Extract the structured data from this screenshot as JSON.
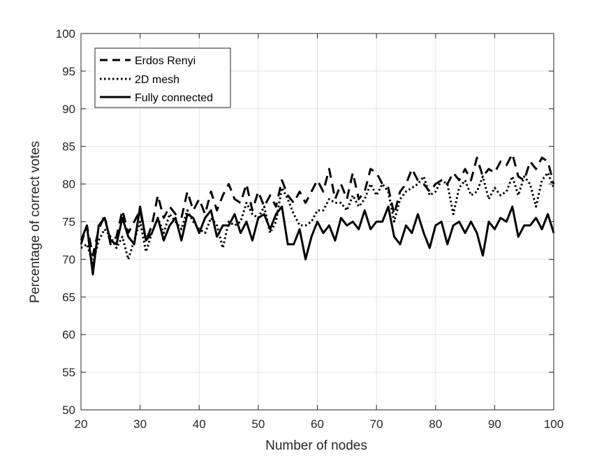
{
  "chart_data": {
    "type": "line",
    "title": "",
    "xlabel": "Number of nodes",
    "ylabel": "Percentage of correct votes",
    "xlim": [
      20,
      100
    ],
    "ylim": [
      50,
      100
    ],
    "xticks": [
      20,
      30,
      40,
      50,
      60,
      70,
      80,
      90,
      100
    ],
    "yticks": [
      50,
      55,
      60,
      65,
      70,
      75,
      80,
      85,
      90,
      95,
      100
    ],
    "grid": true,
    "legend_position": "top-left",
    "x": [
      20,
      21,
      22,
      23,
      24,
      25,
      26,
      27,
      28,
      29,
      30,
      31,
      32,
      33,
      34,
      35,
      36,
      37,
      38,
      39,
      40,
      41,
      42,
      43,
      44,
      45,
      46,
      47,
      48,
      49,
      50,
      51,
      52,
      53,
      54,
      55,
      56,
      57,
      58,
      59,
      60,
      61,
      62,
      63,
      64,
      65,
      66,
      67,
      68,
      69,
      70,
      71,
      72,
      73,
      74,
      75,
      76,
      77,
      78,
      79,
      80,
      81,
      82,
      83,
      84,
      85,
      86,
      87,
      88,
      89,
      90,
      91,
      92,
      93,
      94,
      95,
      96,
      97,
      98,
      99,
      100
    ],
    "series": [
      {
        "name": "Erdos Renyi",
        "style": "dashed",
        "color": "#000000",
        "values": [
          72.0,
          74.5,
          70.5,
          74.0,
          75.8,
          72.0,
          73.0,
          76.5,
          73.5,
          75.0,
          76.5,
          72.5,
          74.5,
          78.5,
          75.5,
          77.0,
          76.0,
          75.5,
          79.0,
          76.5,
          78.0,
          76.0,
          79.0,
          76.5,
          78.5,
          80.0,
          78.0,
          77.5,
          80.0,
          76.5,
          79.0,
          77.0,
          78.5,
          77.0,
          80.5,
          78.5,
          77.5,
          79.0,
          77.5,
          79.0,
          80.5,
          79.0,
          82.0,
          78.0,
          80.0,
          78.0,
          81.5,
          78.0,
          79.0,
          82.0,
          81.5,
          80.0,
          79.5,
          76.0,
          79.0,
          80.0,
          82.0,
          80.5,
          80.0,
          79.0,
          80.0,
          80.5,
          80.0,
          81.5,
          80.5,
          82.0,
          80.5,
          83.5,
          81.0,
          82.0,
          81.5,
          83.0,
          82.5,
          84.0,
          81.0,
          80.5,
          83.0,
          82.0,
          83.5,
          83.0,
          80.0
        ]
      },
      {
        "name": "2D mesh",
        "style": "dotted",
        "color": "#000000",
        "values": [
          71.5,
          72.0,
          69.5,
          72.5,
          74.0,
          73.0,
          71.5,
          73.0,
          70.0,
          72.5,
          75.0,
          71.0,
          73.5,
          75.5,
          73.5,
          76.0,
          75.0,
          74.0,
          76.5,
          75.0,
          74.0,
          73.5,
          75.5,
          74.5,
          71.5,
          75.0,
          74.5,
          75.0,
          77.5,
          76.0,
          75.5,
          77.0,
          73.5,
          75.0,
          79.5,
          78.0,
          76.0,
          74.5,
          74.5,
          75.0,
          76.5,
          76.5,
          78.0,
          77.5,
          77.5,
          76.5,
          78.5,
          77.0,
          78.0,
          80.0,
          78.5,
          80.0,
          79.0,
          75.0,
          78.0,
          79.0,
          79.5,
          80.0,
          81.0,
          78.5,
          79.0,
          80.5,
          80.0,
          76.0,
          79.5,
          80.5,
          78.5,
          79.0,
          81.0,
          78.0,
          79.5,
          78.5,
          79.0,
          81.0,
          78.5,
          81.0,
          80.0,
          77.0,
          80.5,
          81.5,
          79.5
        ]
      },
      {
        "name": "Fully connected",
        "style": "solid",
        "color": "#000000",
        "values": [
          72.5,
          74.5,
          68.0,
          74.5,
          75.5,
          72.5,
          72.0,
          75.5,
          73.0,
          72.0,
          77.0,
          72.5,
          73.5,
          75.5,
          72.5,
          74.5,
          75.5,
          72.5,
          76.0,
          75.5,
          73.5,
          75.5,
          76.5,
          73.0,
          74.5,
          74.5,
          76.0,
          73.5,
          75.0,
          72.5,
          75.5,
          76.0,
          74.0,
          76.0,
          77.0,
          72.0,
          72.0,
          74.0,
          70.0,
          73.0,
          75.0,
          73.5,
          74.5,
          72.5,
          75.5,
          74.5,
          75.0,
          74.0,
          76.5,
          74.0,
          75.0,
          75.0,
          77.0,
          73.0,
          72.0,
          74.5,
          73.5,
          76.0,
          73.5,
          71.5,
          74.5,
          75.0,
          72.0,
          74.5,
          75.0,
          73.5,
          75.0,
          73.5,
          70.5,
          75.0,
          74.0,
          75.5,
          75.0,
          77.0,
          73.0,
          74.5,
          74.5,
          75.5,
          74.0,
          76.0,
          73.5
        ]
      }
    ]
  }
}
